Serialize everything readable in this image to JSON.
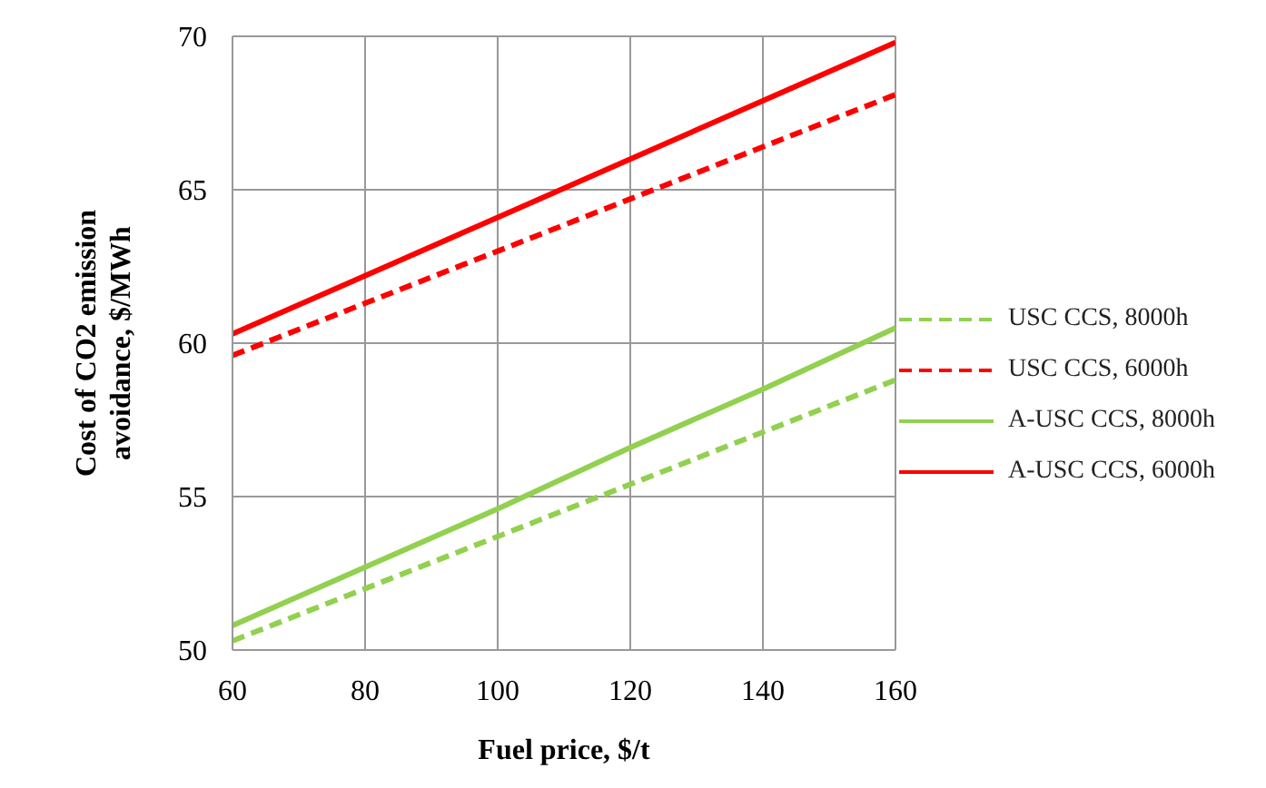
{
  "chart_data": {
    "type": "line",
    "xlabel": "Fuel price, $/t",
    "ylabel": "Cost of CO2 emission avoidance, $/MWh",
    "x": [
      60,
      80,
      100,
      120,
      140,
      160
    ],
    "xlim": [
      60,
      160
    ],
    "xticks": [
      60,
      80,
      100,
      120,
      140,
      160
    ],
    "ylim": [
      50,
      70
    ],
    "yticks": [
      50,
      55,
      60,
      65,
      70
    ],
    "grid": true,
    "legend": "right",
    "marker": "none",
    "series": [
      {
        "name": "USC CCS, 8000h",
        "color": "#92d050",
        "line_style": "dashed",
        "values": [
          50.3,
          52.0,
          53.7,
          55.4,
          57.1,
          58.8
        ]
      },
      {
        "name": "USC CCS, 6000h",
        "color": "#ff0000",
        "line_style": "dashed",
        "values": [
          59.6,
          61.3,
          63.0,
          64.7,
          66.4,
          68.1
        ]
      },
      {
        "name": "A-USC CCS, 8000h",
        "color": "#92d050",
        "line_style": "solid",
        "values": [
          50.8,
          52.7,
          54.6,
          56.6,
          58.5,
          60.5
        ]
      },
      {
        "name": "A-USC CCS, 6000h",
        "color": "#ff0000",
        "line_style": "solid",
        "values": [
          60.3,
          62.2,
          64.1,
          66.0,
          67.9,
          69.8
        ]
      }
    ]
  }
}
